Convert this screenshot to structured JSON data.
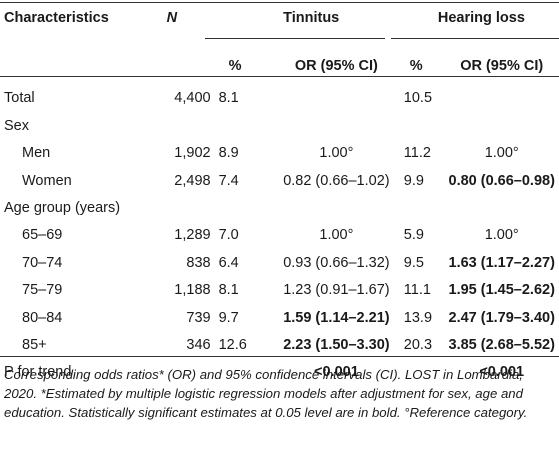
{
  "headers": {
    "characteristics": "Characteristics",
    "n": "N",
    "tinnitus": "Tinnitus",
    "hearing_loss": "Hearing loss",
    "pct": "%",
    "or_ci": "OR (95% CI)"
  },
  "rows": [
    {
      "label": "Total",
      "n": "4,400",
      "t_pct": "8.1",
      "t_or": "",
      "h_pct": "10.5",
      "h_or": ""
    },
    {
      "label": "Sex",
      "n": "",
      "t_pct": "",
      "t_or": "",
      "h_pct": "",
      "h_or": ""
    },
    {
      "label": "Men",
      "n": "1,902",
      "t_pct": "8.9",
      "t_or": "1.00°",
      "h_pct": "11.2",
      "h_or": "1.00°"
    },
    {
      "label": "Women",
      "n": "2,498",
      "t_pct": "7.4",
      "t_or": "0.82 (0.66–1.02)",
      "h_pct": "9.9",
      "h_or": "0.80 (0.66–0.98)"
    },
    {
      "label": "Age group (years)",
      "n": "",
      "t_pct": "",
      "t_or": "",
      "h_pct": "",
      "h_or": ""
    },
    {
      "label": "65–69",
      "n": "1,289",
      "t_pct": "7.0",
      "t_or": "1.00°",
      "h_pct": "5.9",
      "h_or": "1.00°"
    },
    {
      "label": "70–74",
      "n": "838",
      "t_pct": "6.4",
      "t_or": "0.93 (0.66–1.32)",
      "h_pct": "9.5",
      "h_or": "1.63 (1.17–2.27)"
    },
    {
      "label": "75–79",
      "n": "1,188",
      "t_pct": "8.1",
      "t_or": "1.23 (0.91–1.67)",
      "h_pct": "11.1",
      "h_or": "1.95 (1.45–2.62)"
    },
    {
      "label": "80–84",
      "n": "739",
      "t_pct": "9.7",
      "t_or": "1.59 (1.14–2.21)",
      "h_pct": "13.9",
      "h_or": "2.47 (1.79–3.40)"
    },
    {
      "label": "85+",
      "n": "346",
      "t_pct": "12.6",
      "t_or": "2.23 (1.50–3.30)",
      "h_pct": "20.3",
      "h_or": "3.85 (2.68–5.52)"
    },
    {
      "label": "P for trend",
      "n": "",
      "t_pct": "",
      "t_or": "<0.001",
      "h_pct": "",
      "h_or": "<0.001"
    }
  ],
  "footnote": "Corresponding odds ratios* (OR) and 95% confidence intervals (CI). LOST in Lombardia, 2020. *Estimated by multiple logistic regression models after adjustment for sex, age and education. Statistically significant estimates at 0.05 level are in bold. °Reference category."
}
